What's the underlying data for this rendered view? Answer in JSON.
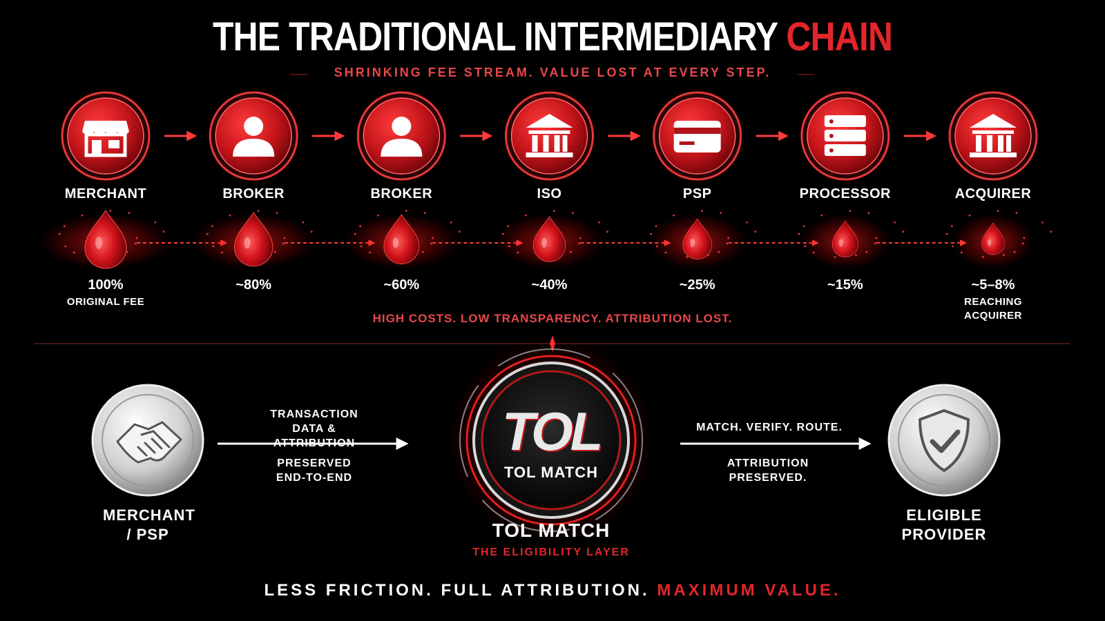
{
  "header": {
    "title": "THE TRADITIONAL INTERMEDIARY",
    "title_accent": "CHAIN",
    "subtitle": "SHRINKING FEE STREAM. VALUE LOST AT EVERY STEP."
  },
  "chain": {
    "nodes": [
      {
        "label": "MERCHANT",
        "share": "100%",
        "note": "ORIGINAL FEE"
      },
      {
        "label": "BROKER",
        "share": "~80%"
      },
      {
        "label": "BROKER",
        "share": "~60%"
      },
      {
        "label": "ISO",
        "share": "~40%"
      },
      {
        "label": "PSP",
        "share": "~25%"
      },
      {
        "label": "PROCESSOR",
        "share": "~15%"
      },
      {
        "label": "ACQUIRER",
        "share": "~5–8%",
        "note": "REACHING ACQUIRER"
      }
    ],
    "caption": "HIGH COSTS. LOW TRANSPARENCY. ATTRIBUTION LOST."
  },
  "flow": {
    "source": {
      "label": "MERCHANT / PSP"
    },
    "left_notes": [
      "TRANSACTION DATA & ATTRIBUTION",
      "PRESERVED END-TO-END"
    ],
    "hub": {
      "logo": "TOL",
      "badge": "TOL MATCH",
      "title": "TOL MATCH",
      "subtitle": "THE ELIGIBILITY LAYER"
    },
    "right_notes": [
      "MATCH. VERIFY. ROUTE.",
      "ATTRIBUTION PRESERVED."
    ],
    "target": {
      "label": "ELIGIBLE PROVIDER"
    }
  },
  "footer": {
    "text": "LESS FRICTION. FULL ATTRIBUTION.",
    "accent": "MAXIMUM VALUE."
  }
}
